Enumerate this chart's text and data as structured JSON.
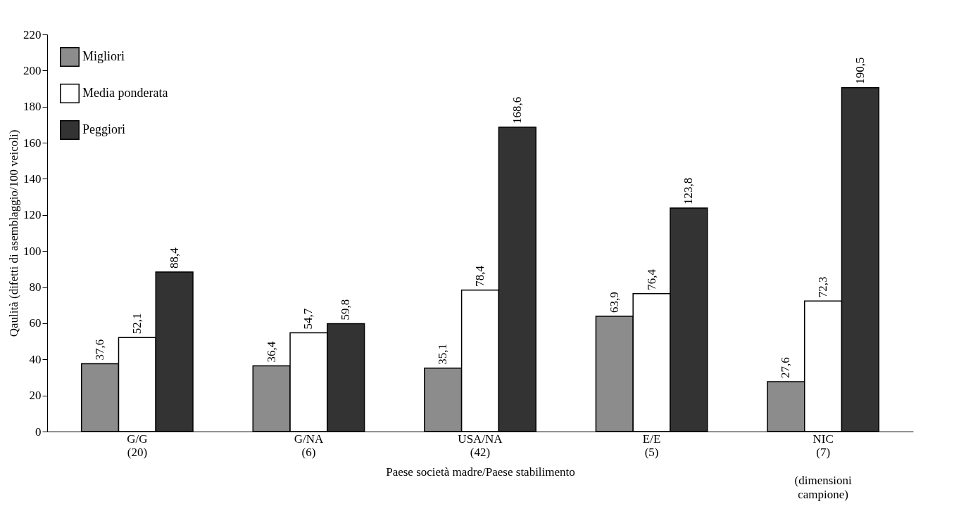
{
  "chart_data": {
    "type": "bar",
    "xlabel": "Paese società madre/Paese stabilimento",
    "ylabel": "Qaulità (difetti di asemblaggio/100 veicoli)",
    "categories": [
      "G/G\n(20)",
      "G/NA\n(6)",
      "USA/NA\n(42)",
      "E/E\n(5)",
      "NIC\n(7)"
    ],
    "series": [
      {
        "name": "Migliori",
        "color": "#8c8c8c",
        "values": [
          37.6,
          36.4,
          35.1,
          63.9,
          27.6
        ],
        "value_labels": [
          "37,6",
          "36,4",
          "35,1",
          "63,9",
          "27,6"
        ]
      },
      {
        "name": "Media ponderata",
        "color": "#ffffff",
        "values": [
          52.1,
          54.7,
          78.4,
          76.4,
          72.3
        ],
        "value_labels": [
          "52,1",
          "54,7",
          "78,4",
          "76,4",
          "72,3"
        ]
      },
      {
        "name": "Peggiori",
        "color": "#333333",
        "values": [
          88.4,
          59.8,
          168.6,
          123.8,
          190.5
        ],
        "value_labels": [
          "88,4",
          "59,8",
          "168,6",
          "123,8",
          "190,5"
        ]
      }
    ],
    "ylim": [
      0,
      220
    ],
    "yticks": [
      0,
      20,
      40,
      60,
      80,
      100,
      120,
      140,
      160,
      180,
      200,
      220
    ],
    "grid": false,
    "legend": "top left",
    "annotations": [
      "(dimensioni\ncampione)"
    ]
  }
}
